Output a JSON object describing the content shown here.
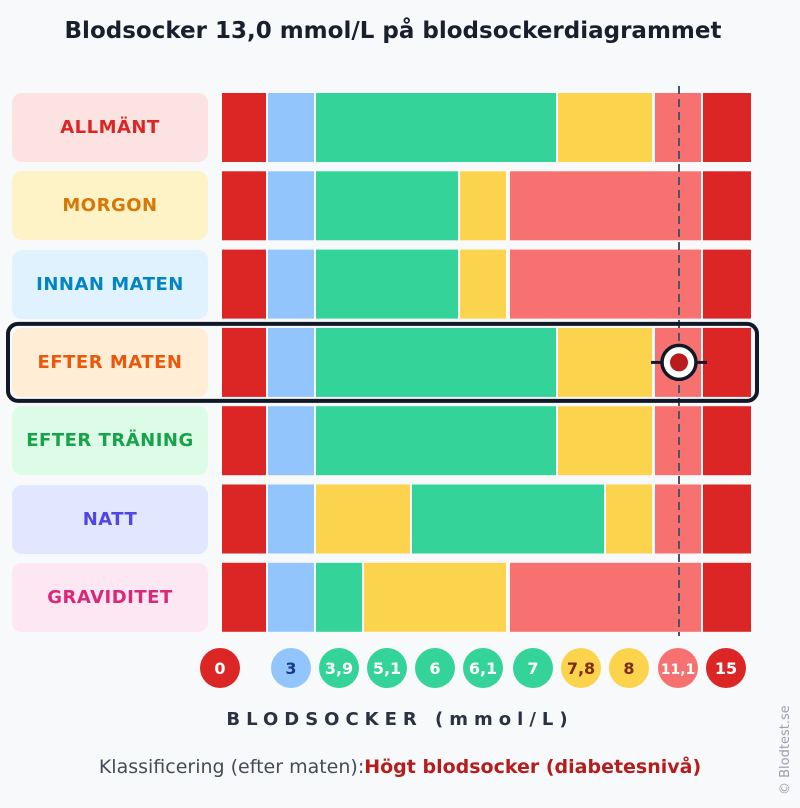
{
  "title": "Blodsocker 13,0 mmol/L på blodsockerdiagrammet",
  "axis_title": "BLODSOCKER (mmol/L)",
  "classification": {
    "label": "Klassificering (efter maten):",
    "value": "Högt blodsocker (diabetesnivå)"
  },
  "watermark": "© Blodtest.se",
  "colors": {
    "red": "#dc2626",
    "blue": "#93c5fd",
    "green": "#34d399",
    "yellow": "#fcd34d",
    "salmon": "#f87171",
    "highlight": "#111827"
  },
  "chart_data": {
    "type": "heatmap",
    "title": "Blodsocker 13,0 mmol/L på blodsockerdiagrammet",
    "xlabel": "BLODSOCKER (mmol/L)",
    "x_ticks": [
      "0",
      "3",
      "3,9",
      "5,1",
      "6",
      "6,1",
      "7",
      "7,8",
      "8",
      "11,1",
      "15"
    ],
    "tick_colors": [
      "red",
      "blue",
      "green",
      "green",
      "green",
      "green",
      "green",
      "yellow",
      "yellow",
      "salmon",
      "red"
    ],
    "marker_value": 13.0,
    "highlighted_row": "EFTER MATEN",
    "rows": [
      {
        "label": "ALLMÄNT",
        "bg": "#fde2e2",
        "fg": "#dc2626",
        "segments": [
          "red",
          "blue",
          "green",
          "green",
          "green",
          "green",
          "green",
          "yellow",
          "yellow",
          "salmon",
          "red"
        ]
      },
      {
        "label": "MORGON",
        "bg": "#fef3c7",
        "fg": "#d97706",
        "segments": [
          "red",
          "blue",
          "green",
          "green",
          "green",
          "yellow",
          "salmon",
          "salmon",
          "salmon",
          "salmon",
          "red"
        ]
      },
      {
        "label": "INNAN MATEN",
        "bg": "#e0f2fe",
        "fg": "#0284c7",
        "segments": [
          "red",
          "blue",
          "green",
          "green",
          "green",
          "yellow",
          "salmon",
          "salmon",
          "salmon",
          "salmon",
          "red"
        ]
      },
      {
        "label": "EFTER MATEN",
        "bg": "#ffedd5",
        "fg": "#ea580c",
        "segments": [
          "red",
          "blue",
          "green",
          "green",
          "green",
          "green",
          "green",
          "yellow",
          "yellow",
          "salmon",
          "red"
        ]
      },
      {
        "label": "EFTER TRÄNING",
        "bg": "#dcfce7",
        "fg": "#16a34a",
        "segments": [
          "red",
          "blue",
          "green",
          "green",
          "green",
          "green",
          "green",
          "yellow",
          "yellow",
          "salmon",
          "red"
        ]
      },
      {
        "label": "NATT",
        "bg": "#e0e7ff",
        "fg": "#4f46e5",
        "segments": [
          "red",
          "blue",
          "yellow",
          "yellow",
          "green",
          "green",
          "green",
          "green",
          "yellow",
          "salmon",
          "red"
        ]
      },
      {
        "label": "GRAVIDITET",
        "bg": "#fce7f3",
        "fg": "#db2777",
        "segments": [
          "red",
          "blue",
          "green",
          "yellow",
          "yellow",
          "yellow",
          "salmon",
          "salmon",
          "salmon",
          "salmon",
          "red"
        ]
      }
    ]
  }
}
